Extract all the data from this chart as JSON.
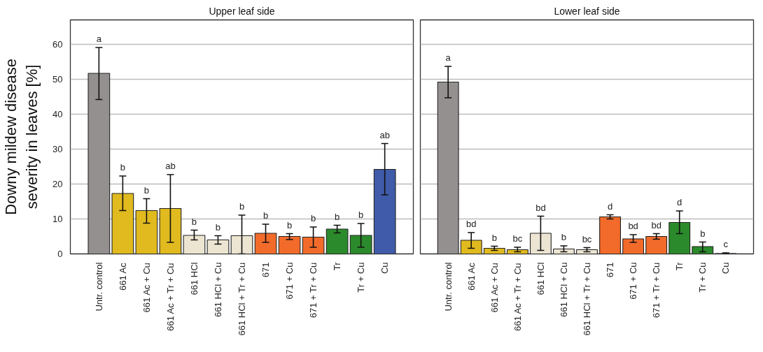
{
  "chart_data": [
    {
      "type": "bar",
      "title": "Upper leaf side",
      "ylabel": "Downy mildew disease\nseverity in leaves [%]",
      "categories": [
        "Untr. control",
        "661 Ac",
        "661 Ac + Cu",
        "661 Ac + Tr + Cu",
        "661 HCl",
        "661 HCl + Cu",
        "661 HCl + Tr + Cu",
        "671",
        "671 + Cu",
        "671 + Tr + Cu",
        "Tr",
        "Tr + Cu",
        "Cu"
      ],
      "values": [
        51.7,
        17.3,
        12.4,
        13.0,
        5.3,
        4.0,
        5.2,
        5.9,
        5.0,
        4.8,
        7.1,
        5.3,
        24.2
      ],
      "colors": [
        "#959090",
        "#e0ba1e",
        "#e0ba1e",
        "#e0ba1e",
        "#ece5d2",
        "#ece5d2",
        "#ece5d2",
        "#f26b2b",
        "#f26b2b",
        "#f26b2b",
        "#2b8a2b",
        "#2b8a2b",
        "#3f5ba9"
      ],
      "errors": [
        [
          44.2,
          59.1
        ],
        [
          12.4,
          22.3
        ],
        [
          8.8,
          15.8
        ],
        [
          3.3,
          22.7
        ],
        [
          4.0,
          6.8
        ],
        [
          2.8,
          5.2
        ],
        [
          0,
          11.1
        ],
        [
          3.3,
          8.5
        ],
        [
          4.1,
          5.8
        ],
        [
          1.9,
          7.7
        ],
        [
          6.0,
          8.2
        ],
        [
          1.9,
          8.7
        ],
        [
          16.9,
          31.6
        ]
      ],
      "annotations": [
        {
          "text": "a",
          "x": "Untr. control",
          "y": 59.1
        },
        {
          "text": "b",
          "x": "661 Ac",
          "y": 22.3
        },
        {
          "text": "b",
          "x": "661 Ac + Cu",
          "y": 15.8
        },
        {
          "text": "ab",
          "x": "661 Ac + Tr + Cu",
          "y": 22.7
        },
        {
          "text": "b",
          "x": "661 HCl",
          "y": 6.8
        },
        {
          "text": "b",
          "x": "661 HCl + Cu",
          "y": 5.2
        },
        {
          "text": "b",
          "x": "661 HCl + Tr + Cu",
          "y": 11.1
        },
        {
          "text": "b",
          "x": "671",
          "y": 8.5
        },
        {
          "text": "b",
          "x": "671 + Cu",
          "y": 5.8
        },
        {
          "text": "b",
          "x": "671 + Tr + Cu",
          "y": 7.7
        },
        {
          "text": "b",
          "x": "Tr",
          "y": 8.2
        },
        {
          "text": "b",
          "x": "Tr + Cu",
          "y": 8.7
        },
        {
          "text": "ab",
          "x": "Cu",
          "y": 31.6
        }
      ],
      "ylim": [
        0,
        67
      ],
      "yticks": [
        0,
        10,
        20,
        30,
        40,
        50,
        60
      ],
      "grid": "y"
    },
    {
      "type": "bar",
      "title": "Lower leaf side",
      "categories": [
        "Untr. control",
        "661 Ac",
        "661 Ac + Cu",
        "661 Ac + Tr + Cu",
        "661 HCl",
        "661 HCl + Cu",
        "661 HCl + Tr + Cu",
        "671",
        "671 + Cu",
        "671 + Tr + Cu",
        "Tr",
        "Tr + Cu",
        "Cu"
      ],
      "values": [
        49.2,
        3.9,
        1.6,
        1.2,
        5.9,
        1.4,
        1.2,
        10.6,
        4.3,
        5.0,
        9.0,
        2.1,
        0.1
      ],
      "colors": [
        "#959090",
        "#e0ba1e",
        "#e0ba1e",
        "#e0ba1e",
        "#ece5d2",
        "#ece5d2",
        "#ece5d2",
        "#f26b2b",
        "#f26b2b",
        "#f26b2b",
        "#2b8a2b",
        "#2b8a2b",
        "#3f5ba9"
      ],
      "errors": [
        [
          44.7,
          53.7
        ],
        [
          1.6,
          6.1
        ],
        [
          1.0,
          2.2
        ],
        [
          0.6,
          1.9
        ],
        [
          1.0,
          10.8
        ],
        [
          0.6,
          2.3
        ],
        [
          0.6,
          1.8
        ],
        [
          10.0,
          11.2
        ],
        [
          3.3,
          5.5
        ],
        [
          4.2,
          5.8
        ],
        [
          5.8,
          12.3
        ],
        [
          0.6,
          3.4
        ],
        [
          0.0,
          0.3
        ]
      ],
      "annotations": [
        {
          "text": "a",
          "x": "Untr. control",
          "y": 53.7
        },
        {
          "text": "bd",
          "x": "661 Ac",
          "y": 6.1
        },
        {
          "text": "b",
          "x": "661 Ac + Cu",
          "y": 2.2
        },
        {
          "text": "bc",
          "x": "661 Ac + Tr + Cu",
          "y": 1.9
        },
        {
          "text": "bd",
          "x": "661 HCl",
          "y": 10.8
        },
        {
          "text": "b",
          "x": "661 HCl + Cu",
          "y": 2.3
        },
        {
          "text": "bc",
          "x": "661 HCl + Tr + Cu",
          "y": 1.8
        },
        {
          "text": "d",
          "x": "671",
          "y": 11.2
        },
        {
          "text": "bd",
          "x": "671 + Cu",
          "y": 5.5
        },
        {
          "text": "bd",
          "x": "671 + Tr + Cu",
          "y": 5.8
        },
        {
          "text": "d",
          "x": "Tr",
          "y": 12.3
        },
        {
          "text": "b",
          "x": "Tr + Cu",
          "y": 3.4
        },
        {
          "text": "c",
          "x": "Cu",
          "y": 0.3
        }
      ],
      "ylim": [
        0,
        67
      ],
      "yticks": [
        0,
        10,
        20,
        30,
        40,
        50,
        60
      ],
      "grid": "y",
      "tick_labels": "x"
    }
  ]
}
